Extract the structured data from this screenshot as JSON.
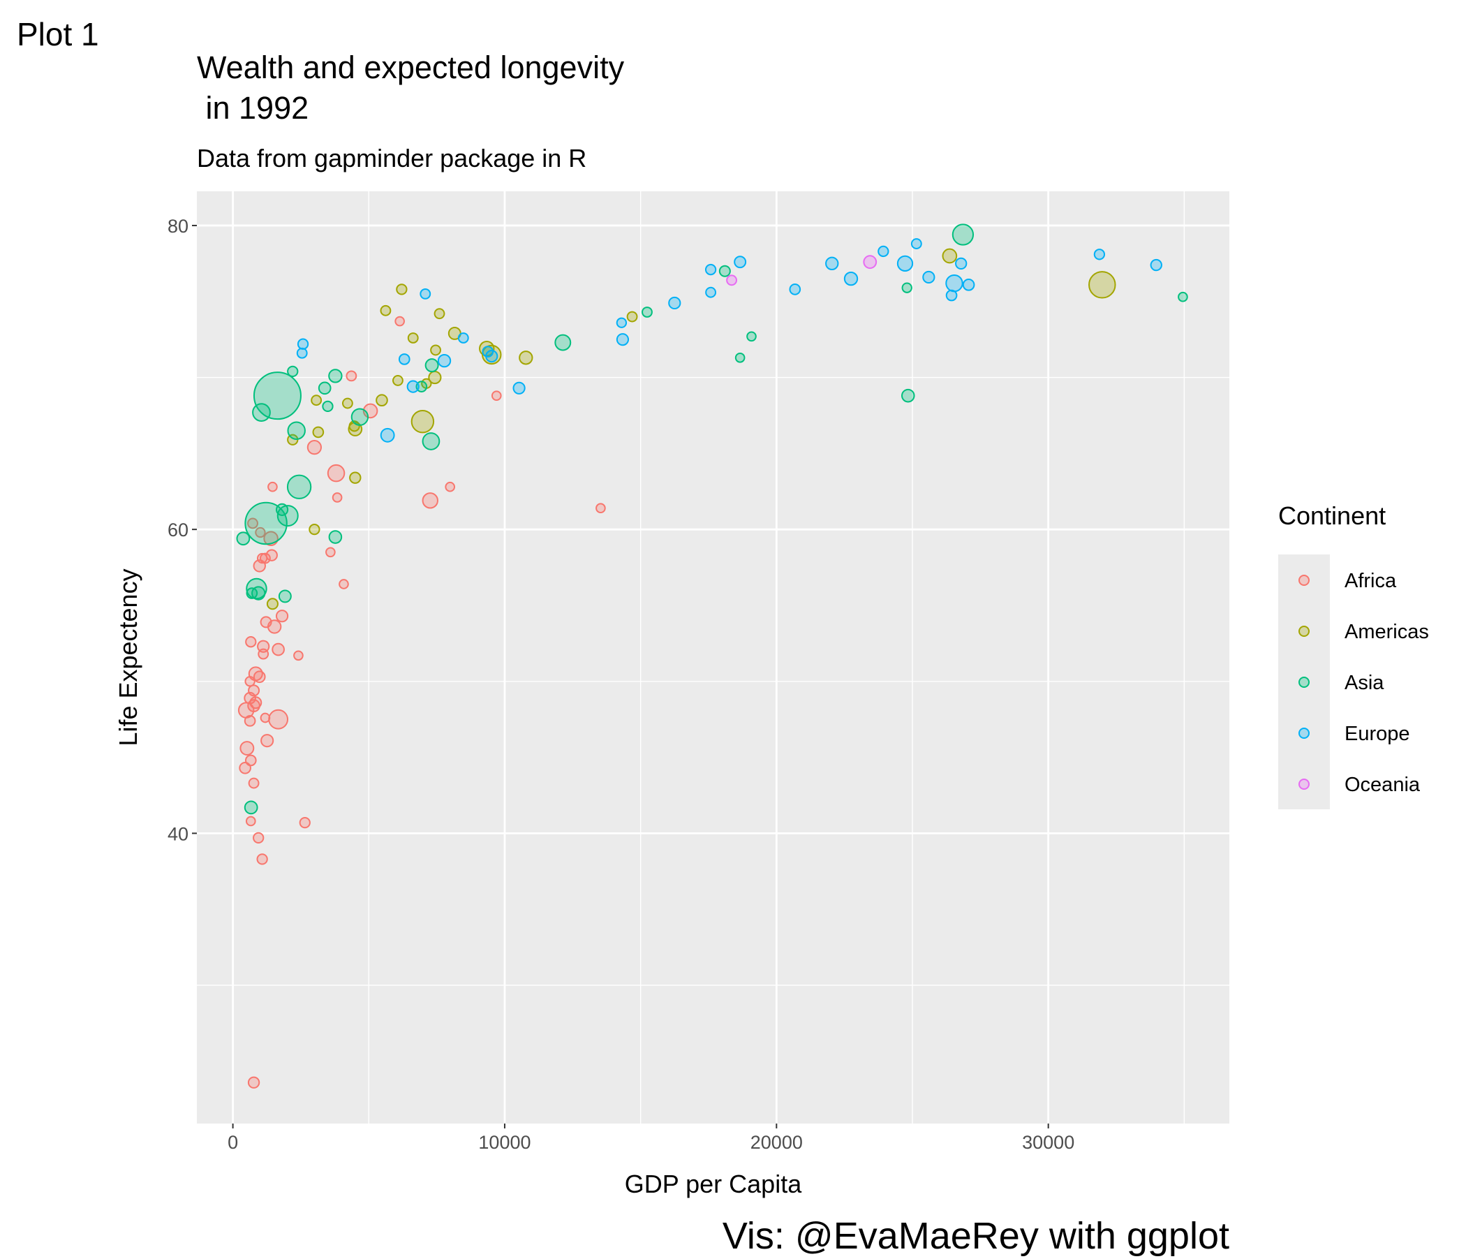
{
  "page_label": "Plot 1",
  "chart_data": {
    "type": "scatter",
    "title": "Wealth and expected longevity\n in 1992",
    "subtitle": "Data from gapminder package in R",
    "caption": "Vis: @EvaMaeRey with ggplot",
    "x_label": "GDP per Capita",
    "y_label": "Life Expectency",
    "legend_title": "Continent",
    "legend_position": "right",
    "grid": true,
    "xlim": [
      -1325,
      36660
    ],
    "ylim": [
      20.9,
      82.25
    ],
    "xticks": [
      0,
      10000,
      20000,
      30000
    ],
    "yticks": [
      40,
      60,
      80
    ],
    "minor_xticks": [
      5000,
      15000,
      25000,
      35000
    ],
    "minor_yticks": [
      30,
      50,
      70
    ],
    "series": [
      {
        "name": "Africa",
        "color": "#F8766D",
        "x": [
          4360,
          6140,
          5060,
          3000,
          3800,
          7260,
          7990,
          9700,
          13530,
          1460,
          3840,
          3590,
          4080,
          730,
          1010,
          1400,
          1430,
          1190,
          1080,
          980,
          1530,
          1810,
          1220,
          660,
          1120,
          1120,
          1670,
          2410,
          840,
          980,
          630,
          770,
          630,
          840,
          770,
          490,
          1670,
          1190,
          630,
          1260,
          520,
          660,
          450,
          770,
          660,
          2650,
          940,
          1080,
          770
        ],
        "values": [
          70.1,
          73.7,
          67.8,
          65.4,
          63.7,
          61.9,
          62.8,
          68.8,
          61.4,
          62.8,
          62.1,
          58.5,
          56.4,
          60.4,
          59.8,
          59.4,
          58.3,
          58.1,
          58.1,
          57.6,
          53.6,
          54.3,
          53.9,
          52.6,
          52.3,
          51.8,
          52.1,
          51.7,
          50.5,
          50.3,
          50.0,
          49.4,
          48.9,
          48.6,
          48.4,
          48.1,
          47.5,
          47.6,
          47.4,
          46.1,
          45.6,
          44.8,
          44.3,
          43.3,
          40.8,
          40.7,
          39.7,
          38.3,
          23.6
        ],
        "size": [
          3,
          1,
          27,
          25,
          58,
          40,
          1,
          1,
          1,
          1,
          1,
          1,
          1,
          3,
          2,
          27,
          7,
          3,
          2,
          11,
          20,
          10,
          6,
          4,
          10,
          3,
          12,
          1,
          24,
          8,
          2,
          6,
          8,
          9,
          12,
          41,
          93,
          1,
          5,
          14,
          23,
          5,
          8,
          3,
          1,
          4,
          4,
          4,
          7
        ]
      },
      {
        "name": "Americas",
        "color": "#A3A500",
        "x": [
          31980,
          26370,
          6210,
          5620,
          7600,
          6630,
          8160,
          7460,
          9340,
          9520,
          10780,
          14690,
          7430,
          7120,
          6070,
          5480,
          6980,
          4500,
          4470,
          4220,
          3070,
          3140,
          2200,
          4500,
          3000,
          1460
        ],
        "values": [
          76.1,
          78.0,
          75.8,
          74.4,
          74.2,
          72.6,
          72.9,
          71.8,
          71.9,
          71.5,
          71.3,
          74.0,
          70.0,
          69.6,
          69.8,
          68.5,
          67.1,
          66.6,
          66.8,
          68.3,
          68.5,
          66.4,
          65.9,
          63.4,
          60.0,
          55.1
        ],
        "size": [
          260,
          28,
          4,
          3,
          3,
          3,
          13,
          3,
          33,
          88,
          20,
          3,
          14,
          2,
          3,
          8,
          155,
          22,
          4,
          3,
          3,
          5,
          4,
          7,
          4,
          6
        ]
      },
      {
        "name": "Asia",
        "color": "#00BF7D",
        "x": [
          26860,
          34950,
          24840,
          24800,
          18100,
          19080,
          18660,
          15240,
          12140,
          7290,
          7320,
          6940,
          4670,
          3770,
          3380,
          3490,
          2200,
          1640,
          1050,
          2340,
          2440,
          2020,
          1220,
          1810,
          380,
          3770,
          870,
          940,
          700,
          1920,
          670
        ],
        "values": [
          79.4,
          75.3,
          68.8,
          75.9,
          77.0,
          72.7,
          71.3,
          74.3,
          72.3,
          65.8,
          70.8,
          69.4,
          67.4,
          70.1,
          69.3,
          68.1,
          70.4,
          68.8,
          67.7,
          66.5,
          62.8,
          60.9,
          60.4,
          61.3,
          59.4,
          59.5,
          56.1,
          55.8,
          55.8,
          55.6,
          41.7
        ],
        "size": [
          124,
          1,
          16,
          2,
          6,
          1,
          1,
          3,
          44,
          60,
          18,
          5,
          57,
          20,
          12,
          4,
          4,
          1164,
          70,
          67,
          185,
          120,
          872,
          10,
          17,
          16,
          113,
          20,
          5,
          13,
          17
        ]
      },
      {
        "name": "Europe",
        "color": "#00B0F6",
        "x": [
          2546,
          2580,
          6310,
          7080,
          6630,
          5690,
          7780,
          8480,
          9520,
          9380,
          10530,
          14300,
          14340,
          16250,
          17580,
          17580,
          18660,
          20680,
          22040,
          22740,
          23930,
          24730,
          25150,
          25600,
          26540,
          26440,
          26790,
          27070,
          31880,
          33970
        ],
        "values": [
          71.6,
          72.2,
          71.2,
          75.5,
          69.4,
          66.2,
          71.1,
          72.6,
          71.4,
          71.7,
          69.3,
          73.6,
          72.5,
          74.9,
          77.1,
          75.6,
          77.6,
          75.8,
          77.5,
          76.5,
          78.3,
          77.5,
          78.8,
          76.6,
          76.2,
          75.4,
          77.5,
          76.1,
          78.1,
          77.4
        ],
        "size": [
          3,
          4,
          5,
          3,
          10,
          23,
          15,
          3,
          10,
          5,
          10,
          2,
          10,
          10,
          4,
          3,
          9,
          5,
          15,
          20,
          4,
          39,
          3,
          10,
          57,
          5,
          7,
          8,
          4,
          7
        ]
      },
      {
        "name": "Oceania",
        "color": "#E76BF3",
        "x": [
          18350,
          23440
        ],
        "values": [
          76.4,
          77.6
        ],
        "size": [
          3,
          17
        ]
      }
    ]
  }
}
